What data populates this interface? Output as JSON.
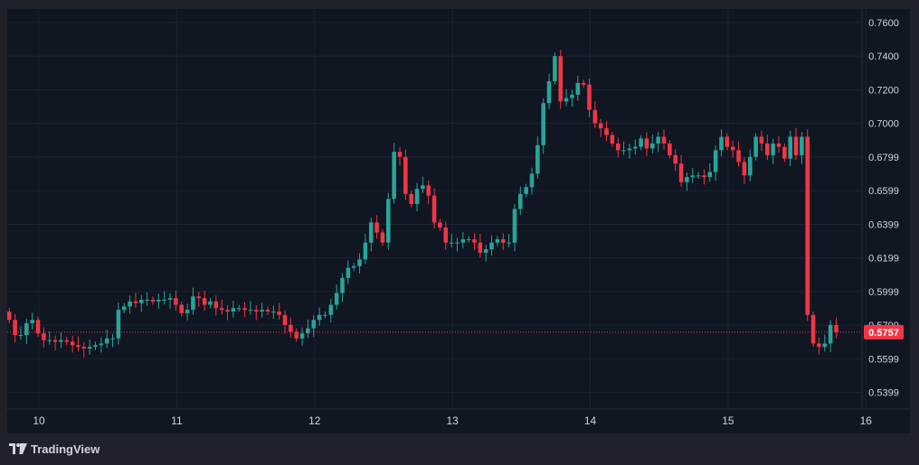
{
  "brand": {
    "name": "TradingView",
    "logo_icon": "tradingview-logo-icon"
  },
  "colors": {
    "background": "#101622",
    "grid": "#1c2331",
    "up": "#26a69a",
    "down": "#f23645",
    "axis_text": "#d1d4dc",
    "price_line": "#f23645"
  },
  "chart_data": {
    "type": "candlestick",
    "x_axis": {
      "tick_labels": [
        "10",
        "11",
        "12",
        "13",
        "14",
        "15",
        "16"
      ],
      "range_days": [
        9.77,
        16.32
      ]
    },
    "y_axis": {
      "tick_labels": [
        "0.7600",
        "0.7400",
        "0.7200",
        "0.7000",
        "0.6799",
        "0.6599",
        "0.6399",
        "0.6199",
        "0.5999",
        "0.5799",
        "0.5599",
        "0.5399"
      ],
      "range": [
        0.53,
        0.768
      ],
      "position": "right"
    },
    "last_price": 0.5757,
    "last_price_label": "0.5757",
    "grid": true,
    "candle_interval_hours": 1,
    "first_candle_day": 9.77,
    "closes": [
      0.583,
      0.574,
      0.574,
      0.581,
      0.583,
      0.575,
      0.571,
      0.571,
      0.57,
      0.571,
      0.57,
      0.568,
      0.567,
      0.566,
      0.567,
      0.568,
      0.569,
      0.572,
      0.572,
      0.589,
      0.591,
      0.594,
      0.593,
      0.595,
      0.595,
      0.594,
      0.595,
      0.595,
      0.596,
      0.592,
      0.587,
      0.589,
      0.597,
      0.596,
      0.592,
      0.594,
      0.59,
      0.589,
      0.588,
      0.59,
      0.59,
      0.589,
      0.589,
      0.588,
      0.589,
      0.588,
      0.588,
      0.586,
      0.58,
      0.576,
      0.572,
      0.575,
      0.578,
      0.583,
      0.586,
      0.586,
      0.592,
      0.599,
      0.608,
      0.614,
      0.615,
      0.619,
      0.629,
      0.641,
      0.635,
      0.629,
      0.655,
      0.683,
      0.68,
      0.658,
      0.652,
      0.661,
      0.663,
      0.657,
      0.641,
      0.638,
      0.629,
      0.629,
      0.629,
      0.631,
      0.631,
      0.629,
      0.623,
      0.625,
      0.629,
      0.631,
      0.629,
      0.629,
      0.649,
      0.658,
      0.662,
      0.67,
      0.687,
      0.712,
      0.725,
      0.74,
      0.713,
      0.715,
      0.717,
      0.724,
      0.723,
      0.708,
      0.7,
      0.697,
      0.693,
      0.688,
      0.684,
      0.684,
      0.685,
      0.686,
      0.691,
      0.685,
      0.688,
      0.692,
      0.688,
      0.681,
      0.676,
      0.665,
      0.668,
      0.669,
      0.669,
      0.668,
      0.671,
      0.684,
      0.692,
      0.686,
      0.684,
      0.677,
      0.669,
      0.68,
      0.692,
      0.688,
      0.681,
      0.688,
      0.686,
      0.679,
      0.692,
      0.681,
      0.692,
      0.586,
      0.569,
      0.567,
      0.569,
      0.58,
      0.5757
    ],
    "first_open": 0.588
  }
}
